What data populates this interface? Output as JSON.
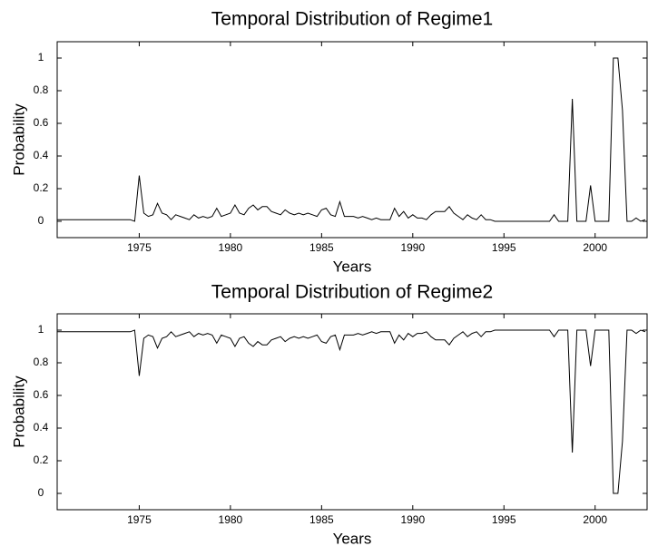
{
  "chart_data": [
    {
      "type": "line",
      "title": "Temporal Distribution of Regime1",
      "xlabel": "Years",
      "ylabel": "Probability",
      "color": "#000000",
      "x": [
        1970.5,
        1970.75,
        1971,
        1971.25,
        1971.5,
        1971.75,
        1972,
        1972.25,
        1972.5,
        1972.75,
        1973,
        1973.25,
        1973.5,
        1973.75,
        1974,
        1974.25,
        1974.5,
        1974.75,
        1975,
        1975.25,
        1975.5,
        1975.75,
        1976,
        1976.25,
        1976.5,
        1976.75,
        1977,
        1977.25,
        1977.5,
        1977.75,
        1978,
        1978.25,
        1978.5,
        1978.75,
        1979,
        1979.25,
        1979.5,
        1979.75,
        1980,
        1980.25,
        1980.5,
        1980.75,
        1981,
        1981.25,
        1981.5,
        1981.75,
        1982,
        1982.25,
        1982.5,
        1982.75,
        1983,
        1983.25,
        1983.5,
        1983.75,
        1984,
        1984.25,
        1984.5,
        1984.75,
        1985,
        1985.25,
        1985.5,
        1985.75,
        1986,
        1986.25,
        1986.5,
        1986.75,
        1987,
        1987.25,
        1987.5,
        1987.75,
        1988,
        1988.25,
        1988.5,
        1988.75,
        1989,
        1989.25,
        1989.5,
        1989.75,
        1990,
        1990.25,
        1990.5,
        1990.75,
        1991,
        1991.25,
        1991.5,
        1991.75,
        1992,
        1992.25,
        1992.5,
        1992.75,
        1993,
        1993.25,
        1993.5,
        1993.75,
        1994,
        1994.25,
        1994.5,
        1994.75,
        1995,
        1995.25,
        1995.5,
        1995.75,
        1996,
        1996.25,
        1996.5,
        1996.75,
        1997,
        1997.25,
        1997.5,
        1997.75,
        1998,
        1998.25,
        1998.5,
        1998.75,
        1999,
        1999.25,
        1999.5,
        1999.75,
        2000,
        2000.25,
        2000.5,
        2000.75,
        2001,
        2001.25,
        2001.5,
        2001.75,
        2002,
        2002.25,
        2002.5,
        2002.75
      ],
      "values": [
        0.01,
        0.01,
        0.01,
        0.01,
        0.01,
        0.01,
        0.01,
        0.01,
        0.01,
        0.01,
        0.01,
        0.01,
        0.01,
        0.01,
        0.01,
        0.01,
        0.01,
        0,
        0.28,
        0.05,
        0.03,
        0.04,
        0.11,
        0.05,
        0.04,
        0.01,
        0.04,
        0.03,
        0.02,
        0.01,
        0.04,
        0.02,
        0.03,
        0.02,
        0.03,
        0.08,
        0.03,
        0.04,
        0.05,
        0.1,
        0.05,
        0.04,
        0.08,
        0.1,
        0.07,
        0.09,
        0.09,
        0.06,
        0.05,
        0.04,
        0.07,
        0.05,
        0.04,
        0.05,
        0.04,
        0.05,
        0.04,
        0.03,
        0.07,
        0.08,
        0.04,
        0.03,
        0.12,
        0.03,
        0.03,
        0.03,
        0.02,
        0.03,
        0.02,
        0.01,
        0.02,
        0.01,
        0.01,
        0.01,
        0.08,
        0.03,
        0.06,
        0.02,
        0.04,
        0.02,
        0.02,
        0.01,
        0.04,
        0.06,
        0.06,
        0.06,
        0.09,
        0.05,
        0.03,
        0.01,
        0.04,
        0.02,
        0.01,
        0.04,
        0.01,
        0.01,
        0,
        0,
        0,
        0,
        0,
        0,
        0,
        0,
        0,
        0,
        0,
        0,
        0,
        0.04,
        0,
        0,
        0,
        0.75,
        0,
        0,
        0,
        0.22,
        0,
        0,
        0,
        0,
        1,
        1,
        0.68,
        0,
        0,
        0.02,
        0,
        0.01
      ],
      "xlim": [
        1970.5,
        2002.85
      ],
      "ylim": [
        -0.1,
        1.1
      ],
      "xticks": [
        1975,
        1980,
        1985,
        1990,
        1995,
        2000
      ],
      "yticks": [
        0,
        0.2,
        0.4,
        0.6,
        0.8,
        1
      ]
    },
    {
      "type": "line",
      "title": "Temporal Distribution of Regime2",
      "xlabel": "Years",
      "ylabel": "Probability",
      "color": "#000000",
      "x": [
        1970.5,
        1970.75,
        1971,
        1971.25,
        1971.5,
        1971.75,
        1972,
        1972.25,
        1972.5,
        1972.75,
        1973,
        1973.25,
        1973.5,
        1973.75,
        1974,
        1974.25,
        1974.5,
        1974.75,
        1975,
        1975.25,
        1975.5,
        1975.75,
        1976,
        1976.25,
        1976.5,
        1976.75,
        1977,
        1977.25,
        1977.5,
        1977.75,
        1978,
        1978.25,
        1978.5,
        1978.75,
        1979,
        1979.25,
        1979.5,
        1979.75,
        1980,
        1980.25,
        1980.5,
        1980.75,
        1981,
        1981.25,
        1981.5,
        1981.75,
        1982,
        1982.25,
        1982.5,
        1982.75,
        1983,
        1983.25,
        1983.5,
        1983.75,
        1984,
        1984.25,
        1984.5,
        1984.75,
        1985,
        1985.25,
        1985.5,
        1985.75,
        1986,
        1986.25,
        1986.5,
        1986.75,
        1987,
        1987.25,
        1987.5,
        1987.75,
        1988,
        1988.25,
        1988.5,
        1988.75,
        1989,
        1989.25,
        1989.5,
        1989.75,
        1990,
        1990.25,
        1990.5,
        1990.75,
        1991,
        1991.25,
        1991.5,
        1991.75,
        1992,
        1992.25,
        1992.5,
        1992.75,
        1993,
        1993.25,
        1993.5,
        1993.75,
        1994,
        1994.25,
        1994.5,
        1994.75,
        1995,
        1995.25,
        1995.5,
        1995.75,
        1996,
        1996.25,
        1996.5,
        1996.75,
        1997,
        1997.25,
        1997.5,
        1997.75,
        1998,
        1998.25,
        1998.5,
        1998.75,
        1999,
        1999.25,
        1999.5,
        1999.75,
        2000,
        2000.25,
        2000.5,
        2000.75,
        2001,
        2001.25,
        2001.5,
        2001.75,
        2002,
        2002.25,
        2002.5,
        2002.75
      ],
      "values": [
        0.99,
        0.99,
        0.99,
        0.99,
        0.99,
        0.99,
        0.99,
        0.99,
        0.99,
        0.99,
        0.99,
        0.99,
        0.99,
        0.99,
        0.99,
        0.99,
        0.99,
        1,
        0.72,
        0.95,
        0.97,
        0.96,
        0.89,
        0.95,
        0.96,
        0.99,
        0.96,
        0.97,
        0.98,
        0.99,
        0.96,
        0.98,
        0.97,
        0.98,
        0.97,
        0.92,
        0.97,
        0.96,
        0.95,
        0.9,
        0.95,
        0.96,
        0.92,
        0.9,
        0.93,
        0.91,
        0.91,
        0.94,
        0.95,
        0.96,
        0.93,
        0.95,
        0.96,
        0.95,
        0.96,
        0.95,
        0.96,
        0.97,
        0.93,
        0.92,
        0.96,
        0.97,
        0.88,
        0.97,
        0.97,
        0.97,
        0.98,
        0.97,
        0.98,
        0.99,
        0.98,
        0.99,
        0.99,
        0.99,
        0.92,
        0.97,
        0.94,
        0.98,
        0.96,
        0.98,
        0.98,
        0.99,
        0.96,
        0.94,
        0.94,
        0.94,
        0.91,
        0.95,
        0.97,
        0.99,
        0.96,
        0.98,
        0.99,
        0.96,
        0.99,
        0.99,
        1,
        1,
        1,
        1,
        1,
        1,
        1,
        1,
        1,
        1,
        1,
        1,
        1,
        0.96,
        1,
        1,
        1,
        0.25,
        1,
        1,
        1,
        0.78,
        1,
        1,
        1,
        1,
        0,
        0,
        0.32,
        1,
        1,
        0.98,
        1,
        0.99
      ],
      "xlim": [
        1970.5,
        2002.85
      ],
      "ylim": [
        -0.1,
        1.1
      ],
      "xticks": [
        1975,
        1980,
        1985,
        1990,
        1995,
        2000
      ],
      "yticks": [
        0,
        0.2,
        0.4,
        0.6,
        0.8,
        1
      ]
    }
  ]
}
